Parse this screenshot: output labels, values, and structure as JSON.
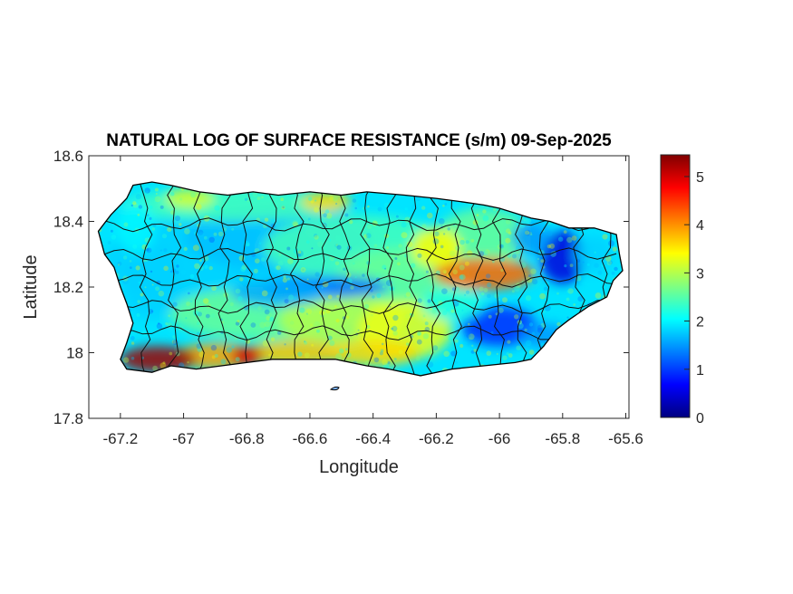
{
  "chart_data": {
    "type": "heatmap",
    "title": "NATURAL LOG OF SURFACE RESISTANCE (s/m) 09-Sep-2025",
    "xlabel": "Longitude",
    "ylabel": "Latitude",
    "xlim": [
      -67.3,
      -65.59
    ],
    "ylim": [
      17.8,
      18.6
    ],
    "xticks": [
      -67.2,
      -67,
      -66.8,
      -66.6,
      -66.4,
      -66.2,
      -66,
      -65.8,
      -65.6
    ],
    "xtick_labels": [
      "-67.2",
      "-67",
      "-66.8",
      "-66.6",
      "-66.4",
      "-66.2",
      "-66",
      "-65.8",
      "-65.6"
    ],
    "yticks": [
      17.8,
      18,
      18.2,
      18.4,
      18.6
    ],
    "ytick_labels": [
      "17.8",
      "18",
      "18.2",
      "18.4",
      "18.6"
    ],
    "colormap": "jet",
    "clim": [
      0,
      5.45
    ],
    "colorbar_ticks": [
      0,
      1,
      2,
      3,
      4,
      5
    ],
    "colorbar_labels": [
      "0",
      "1",
      "2",
      "3",
      "4",
      "5"
    ],
    "colorbar_colors": [
      "#000080",
      "#0000ff",
      "#0080ff",
      "#00ffff",
      "#80ff80",
      "#ffff00",
      "#ff8000",
      "#ff0000",
      "#800000"
    ],
    "outline": [
      [
        -67.27,
        18.37
      ],
      [
        -67.23,
        18.42
      ],
      [
        -67.18,
        18.47
      ],
      [
        -67.16,
        18.51
      ],
      [
        -67.1,
        18.52
      ],
      [
        -67.04,
        18.51
      ],
      [
        -66.95,
        18.49
      ],
      [
        -66.86,
        18.48
      ],
      [
        -66.78,
        18.49
      ],
      [
        -66.7,
        18.48
      ],
      [
        -66.6,
        18.49
      ],
      [
        -66.5,
        18.48
      ],
      [
        -66.42,
        18.49
      ],
      [
        -66.3,
        18.48
      ],
      [
        -66.2,
        18.47
      ],
      [
        -66.12,
        18.46
      ],
      [
        -66.05,
        18.45
      ],
      [
        -66.0,
        18.44
      ],
      [
        -65.9,
        18.41
      ],
      [
        -65.84,
        18.4
      ],
      [
        -65.78,
        18.38
      ],
      [
        -65.7,
        18.38
      ],
      [
        -65.63,
        18.36
      ],
      [
        -65.62,
        18.3
      ],
      [
        -65.61,
        18.25
      ],
      [
        -65.64,
        18.22
      ],
      [
        -65.66,
        18.17
      ],
      [
        -65.72,
        18.14
      ],
      [
        -65.78,
        18.1
      ],
      [
        -65.82,
        18.07
      ],
      [
        -65.86,
        18.02
      ],
      [
        -65.9,
        17.98
      ],
      [
        -65.95,
        17.97
      ],
      [
        -66.05,
        17.96
      ],
      [
        -66.15,
        17.95
      ],
      [
        -66.25,
        17.93
      ],
      [
        -66.35,
        17.95
      ],
      [
        -66.42,
        17.96
      ],
      [
        -66.52,
        17.98
      ],
      [
        -66.62,
        17.98
      ],
      [
        -66.72,
        17.98
      ],
      [
        -66.8,
        17.97
      ],
      [
        -66.88,
        17.96
      ],
      [
        -66.96,
        17.95
      ],
      [
        -67.04,
        17.96
      ],
      [
        -67.1,
        17.94
      ],
      [
        -67.18,
        17.95
      ],
      [
        -67.2,
        17.98
      ],
      [
        -67.18,
        18.03
      ],
      [
        -67.16,
        18.09
      ],
      [
        -67.18,
        18.15
      ],
      [
        -67.2,
        18.2
      ],
      [
        -67.22,
        18.26
      ],
      [
        -67.25,
        18.3
      ],
      [
        -67.27,
        18.37
      ]
    ],
    "patches": [
      {
        "lon": -66.9,
        "lat": 18.28,
        "value": 1.8,
        "rx": 0.35,
        "ry": 0.14
      },
      {
        "lon": -66.7,
        "lat": 18.35,
        "value": 1.7,
        "rx": 0.3,
        "ry": 0.1
      },
      {
        "lon": -66.45,
        "lat": 18.32,
        "value": 2.4,
        "rx": 0.3,
        "ry": 0.1
      },
      {
        "lon": -66.3,
        "lat": 18.22,
        "value": 2.6,
        "rx": 0.22,
        "ry": 0.1
      },
      {
        "lon": -66.75,
        "lat": 18.12,
        "value": 2.6,
        "rx": 0.3,
        "ry": 0.08
      },
      {
        "lon": -66.5,
        "lat": 18.1,
        "value": 3.0,
        "rx": 0.2,
        "ry": 0.08
      },
      {
        "lon": -66.3,
        "lat": 18.07,
        "value": 3.3,
        "rx": 0.15,
        "ry": 0.09
      },
      {
        "lon": -66.05,
        "lat": 18.35,
        "value": 2.6,
        "rx": 0.15,
        "ry": 0.09
      },
      {
        "lon": -66.85,
        "lat": 18.45,
        "value": 2.4,
        "rx": 0.35,
        "ry": 0.05
      },
      {
        "lon": -66.55,
        "lat": 18.46,
        "value": 3.6,
        "rx": 0.08,
        "ry": 0.03
      },
      {
        "lon": -66.98,
        "lat": 18.47,
        "value": 3.2,
        "rx": 0.08,
        "ry": 0.03
      },
      {
        "lon": -66.05,
        "lat": 18.24,
        "value": 4.2,
        "rx": 0.16,
        "ry": 0.05
      },
      {
        "lon": -66.2,
        "lat": 18.32,
        "value": 3.4,
        "rx": 0.08,
        "ry": 0.06
      },
      {
        "lon": -66.4,
        "lat": 18.0,
        "value": 3.6,
        "rx": 0.15,
        "ry": 0.04
      },
      {
        "lon": -66.65,
        "lat": 18.0,
        "value": 3.7,
        "rx": 0.15,
        "ry": 0.04
      },
      {
        "lon": -66.9,
        "lat": 17.99,
        "value": 3.9,
        "rx": 0.12,
        "ry": 0.04
      },
      {
        "lon": -67.08,
        "lat": 17.98,
        "value": 5.3,
        "rx": 0.12,
        "ry": 0.04
      },
      {
        "lon": -66.8,
        "lat": 17.99,
        "value": 5.0,
        "rx": 0.05,
        "ry": 0.03
      },
      {
        "lon": -66.55,
        "lat": 18.2,
        "value": 1.3,
        "rx": 0.2,
        "ry": 0.035
      },
      {
        "lon": -66.7,
        "lat": 18.18,
        "value": 1.6,
        "rx": 0.15,
        "ry": 0.04
      },
      {
        "lon": -66.0,
        "lat": 18.08,
        "value": 0.9,
        "rx": 0.12,
        "ry": 0.06
      },
      {
        "lon": -65.85,
        "lat": 18.05,
        "value": 1.5,
        "rx": 0.08,
        "ry": 0.04
      },
      {
        "lon": -65.8,
        "lat": 18.29,
        "value": 0.5,
        "rx": 0.07,
        "ry": 0.08
      },
      {
        "lon": -65.7,
        "lat": 18.3,
        "value": 1.8,
        "rx": 0.06,
        "ry": 0.06
      },
      {
        "lon": -65.9,
        "lat": 18.35,
        "value": 1.5,
        "rx": 0.06,
        "ry": 0.05
      },
      {
        "lon": -66.15,
        "lat": 18.15,
        "value": 2.2,
        "rx": 0.1,
        "ry": 0.05
      },
      {
        "lon": -67.1,
        "lat": 18.22,
        "value": 1.8,
        "rx": 0.1,
        "ry": 0.12
      },
      {
        "lon": -67.15,
        "lat": 18.38,
        "value": 2.0,
        "rx": 0.06,
        "ry": 0.08
      }
    ]
  }
}
